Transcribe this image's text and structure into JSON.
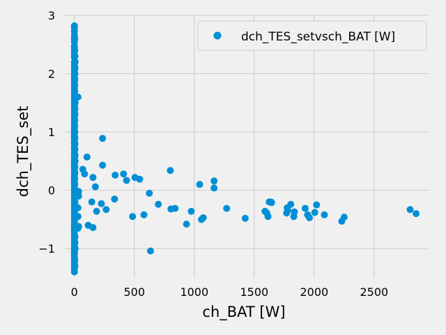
{
  "chart_data": {
    "type": "scatter",
    "title": "",
    "xlabel": "ch_BAT [W]",
    "ylabel": "dch_TES_set",
    "xlim": [
      -80,
      2960
    ],
    "ylim": [
      -1.5,
      3.0
    ],
    "xticks": [
      0,
      500,
      1000,
      1500,
      2000,
      2500
    ],
    "yticks": [
      -1,
      0,
      1,
      2,
      3
    ],
    "xtick_labels": [
      "0",
      "500",
      "1000",
      "1500",
      "2000",
      "2500"
    ],
    "ytick_labels": [
      "−1",
      "0",
      "1",
      "2",
      "3"
    ],
    "grid": true,
    "legend_position": "top-right",
    "series": [
      {
        "name": "dch_TES_setvsch_BAT [W]",
        "color": "#008fd5",
        "x": [
          0,
          0,
          0,
          0,
          0,
          0,
          0,
          0,
          0,
          0,
          0,
          0,
          0,
          0,
          0,
          0,
          0,
          0,
          0,
          0,
          0,
          0,
          0,
          0,
          0,
          0,
          0,
          0,
          0,
          0,
          0,
          0,
          0,
          0,
          0,
          0,
          0,
          0,
          0,
          0,
          0,
          0,
          0,
          0,
          0,
          0,
          0,
          0,
          0,
          0,
          0,
          0,
          0,
          0,
          0,
          0,
          0,
          0,
          0,
          0,
          0,
          0,
          0,
          0,
          0,
          0,
          0,
          0,
          0,
          0,
          0,
          0,
          0,
          0,
          0,
          0,
          0,
          0,
          0,
          0,
          0,
          0,
          0,
          0,
          0,
          0,
          0,
          0,
          0,
          0,
          0,
          0,
          0,
          0,
          0,
          0,
          0,
          0,
          0,
          0,
          3,
          4,
          5,
          3,
          5,
          4,
          6,
          3,
          5,
          4,
          6,
          3,
          5,
          4,
          6,
          3,
          5,
          4,
          6,
          3,
          5,
          4,
          6,
          3,
          5,
          4,
          6,
          3,
          5,
          4,
          6,
          3,
          5,
          4,
          6,
          3,
          30,
          30,
          30,
          30,
          35,
          35,
          35,
          70,
          85,
          105,
          115,
          145,
          155,
          155,
          175,
          185,
          225,
          235,
          235,
          265,
          335,
          340,
          410,
          435,
          485,
          505,
          545,
          580,
          625,
          635,
          700,
          800,
          805,
          840,
          935,
          975,
          1045,
          1060,
          1075,
          1165,
          1165,
          1270,
          1425,
          1590,
          1605,
          1615,
          1625,
          1640,
          1645,
          1770,
          1775,
          1780,
          1805,
          1830,
          1835,
          1925,
          1945,
          1960,
          2005,
          2020,
          2085,
          2230,
          2250,
          2800,
          2850
        ],
        "y": [
          2.82,
          2.78,
          2.72,
          2.65,
          2.6,
          2.55,
          2.48,
          2.45,
          2.42,
          2.38,
          2.32,
          2.28,
          2.2,
          2.15,
          2.1,
          2.05,
          2.0,
          1.95,
          1.9,
          1.85,
          1.8,
          1.75,
          1.7,
          1.65,
          1.6,
          1.55,
          1.5,
          1.45,
          1.4,
          1.35,
          1.3,
          1.25,
          1.2,
          1.15,
          1.1,
          1.05,
          1.0,
          0.95,
          0.9,
          0.85,
          0.8,
          0.75,
          0.7,
          0.65,
          0.6,
          0.55,
          0.5,
          0.45,
          0.4,
          0.35,
          0.3,
          0.25,
          0.2,
          0.15,
          0.1,
          0.05,
          0.0,
          -0.05,
          -0.1,
          -0.15,
          -0.2,
          -0.25,
          -0.3,
          -0.35,
          -0.4,
          -0.45,
          -0.5,
          -0.55,
          -0.6,
          -0.65,
          -0.7,
          -0.75,
          -0.8,
          -0.85,
          -0.9,
          -0.95,
          -1.0,
          -1.05,
          -1.1,
          -1.15,
          -1.2,
          -1.25,
          -1.3,
          -1.35,
          -1.4,
          -1.07,
          -1.13,
          -1.31,
          -0.62,
          0.04,
          0.12,
          0.22,
          0.32,
          0.42,
          0.52,
          0.62,
          0.72,
          0.82,
          0.92,
          1.02,
          2.4,
          2.0,
          1.6,
          1.2,
          0.8,
          0.4,
          0.0,
          -0.4,
          -0.8,
          -1.2,
          2.2,
          1.8,
          1.4,
          1.0,
          0.6,
          0.2,
          -0.2,
          -0.6,
          -1.0,
          2.6,
          2.3,
          1.9,
          1.5,
          1.1,
          0.7,
          0.3,
          -0.1,
          -0.5,
          -0.9,
          -1.3,
          2.1,
          1.7,
          1.3,
          0.9,
          0.5,
          0.1,
          1.6,
          -0.3,
          -0.45,
          -0.65,
          -0.1,
          -0.02,
          -0.62,
          0.36,
          0.28,
          0.57,
          -0.6,
          -0.2,
          0.22,
          -0.64,
          0.06,
          -0.36,
          -0.23,
          0.43,
          0.89,
          -0.33,
          -0.15,
          0.26,
          0.28,
          0.17,
          -0.45,
          0.22,
          0.19,
          -0.42,
          -0.05,
          -1.04,
          -0.24,
          0.34,
          -0.32,
          -0.31,
          -0.58,
          -0.36,
          0.1,
          -0.5,
          -0.47,
          0.16,
          0.04,
          -0.31,
          -0.48,
          -0.36,
          -0.39,
          -0.45,
          -0.2,
          -0.2,
          -0.21,
          -0.39,
          -0.3,
          -0.34,
          -0.24,
          -0.45,
          -0.37,
          -0.31,
          -0.42,
          -0.47,
          -0.38,
          -0.25,
          -0.42,
          -0.53,
          -0.46,
          -0.33,
          -0.4
        ]
      }
    ]
  }
}
